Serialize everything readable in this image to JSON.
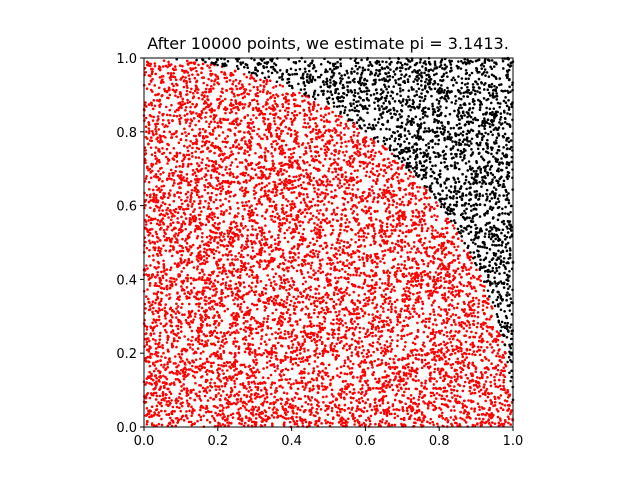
{
  "chart_data": {
    "type": "scatter",
    "title": "After 10000 points, we estimate pi = 3.1413.",
    "xlabel": "",
    "ylabel": "",
    "xlim": [
      0.0,
      1.0
    ],
    "ylim": [
      0.0,
      1.0
    ],
    "grid": false,
    "x_ticks": [
      "0.0",
      "0.2",
      "0.4",
      "0.6",
      "0.8",
      "1.0"
    ],
    "y_ticks": [
      "0.0",
      "0.2",
      "0.4",
      "0.6",
      "0.8",
      "1.0"
    ],
    "point_count": 10000,
    "estimate": 3.1413,
    "boundary": "x^2 + y^2 = 1",
    "series": [
      {
        "role": "inside-unit-circle",
        "color": "#ff0000",
        "rule": "x^2 + y^2 <= 1"
      },
      {
        "role": "outside-unit-circle",
        "color": "#000000",
        "rule": "x^2 + y^2 > 1"
      }
    ]
  }
}
